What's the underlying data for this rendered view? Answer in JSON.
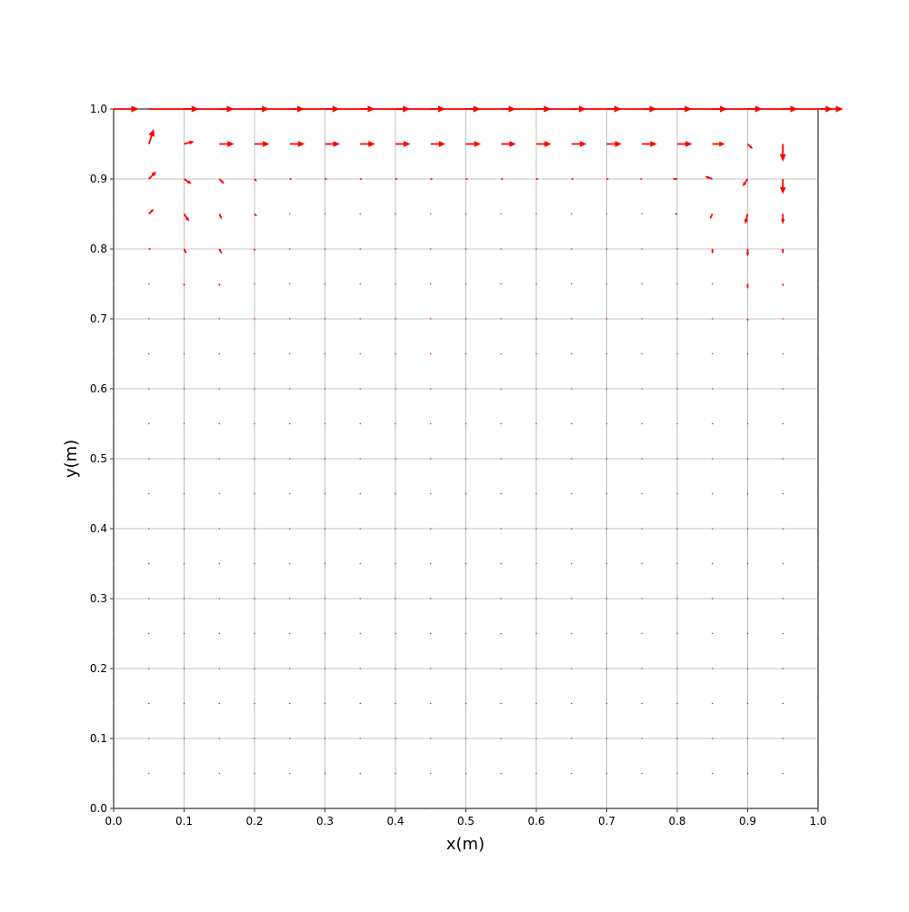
{
  "chart_data": {
    "type": "quiver",
    "xlabel": "x(m)",
    "ylabel": "y(m)",
    "color": "#ff0000",
    "grid": true,
    "xlim": [
      0,
      1
    ],
    "ylim": [
      0,
      1
    ],
    "xticks": [
      {
        "value": 0,
        "label": "0.0"
      },
      {
        "value": 0.1,
        "label": "0.1"
      },
      {
        "value": 0.2,
        "label": "0.2"
      },
      {
        "value": 0.3,
        "label": "0.3"
      },
      {
        "value": 0.4,
        "label": "0.4"
      },
      {
        "value": 0.5,
        "label": "0.5"
      },
      {
        "value": 0.6,
        "label": "0.6"
      },
      {
        "value": 0.7,
        "label": "0.7"
      },
      {
        "value": 0.8,
        "label": "0.8"
      },
      {
        "value": 0.9,
        "label": "0.9"
      },
      {
        "value": 1,
        "label": "1.0"
      }
    ],
    "yticks": [
      {
        "value": 0,
        "label": "0.0"
      },
      {
        "value": 0.1,
        "label": "0.1"
      },
      {
        "value": 0.2,
        "label": "0.2"
      },
      {
        "value": 0.3,
        "label": "0.3"
      },
      {
        "value": 0.4,
        "label": "0.4"
      },
      {
        "value": 0.5,
        "label": "0.5"
      },
      {
        "value": 0.6,
        "label": "0.6"
      },
      {
        "value": 0.7,
        "label": "0.7"
      },
      {
        "value": 0.8,
        "label": "0.8"
      },
      {
        "value": 0.9,
        "label": "0.9"
      },
      {
        "value": 1,
        "label": "1.0"
      }
    ],
    "x": [
      0,
      0.05,
      0.1,
      0.15,
      0.2,
      0.25,
      0.3,
      0.35,
      0.4,
      0.45,
      0.5,
      0.55,
      0.6,
      0.65,
      0.7,
      0.75,
      0.8,
      0.85,
      0.9,
      0.95,
      1
    ],
    "y": [
      0,
      0.05,
      0.1,
      0.15,
      0.2,
      0.25,
      0.3,
      0.35,
      0.4,
      0.45,
      0.5,
      0.55,
      0.6,
      0.65,
      0.7,
      0.75,
      0.8,
      0.85,
      0.9,
      0.95,
      1
    ],
    "u": [
      [
        0,
        0,
        0,
        0,
        0,
        0,
        0,
        0,
        0,
        0,
        0,
        0,
        0,
        0,
        0,
        0,
        0,
        0,
        0,
        0,
        0
      ],
      [
        0,
        0,
        0,
        0,
        0,
        0,
        0,
        0,
        0,
        0,
        0,
        0,
        0,
        0,
        0,
        0,
        0,
        0,
        0,
        0,
        0
      ],
      [
        0,
        0,
        0,
        0,
        0,
        0,
        0,
        0,
        0,
        0,
        0,
        0,
        0,
        0,
        0,
        0,
        0,
        0,
        0,
        0,
        0
      ],
      [
        0,
        0,
        0,
        0,
        0,
        0,
        0,
        0,
        0,
        0,
        0,
        0,
        0,
        0,
        0,
        0,
        0,
        0,
        0,
        0,
        0
      ],
      [
        0,
        0,
        0,
        0,
        0,
        0,
        0,
        0,
        0,
        0,
        0,
        0,
        0,
        0,
        0,
        0,
        0,
        0,
        0,
        0,
        0
      ],
      [
        0,
        0,
        0,
        0,
        0,
        0,
        0,
        0,
        0,
        0,
        0,
        0,
        0,
        0,
        0,
        0,
        0,
        0,
        0,
        0,
        0
      ],
      [
        0,
        0,
        0,
        0,
        0,
        0,
        0,
        0,
        0,
        0,
        0,
        0,
        0,
        0,
        0,
        0,
        0,
        0,
        0,
        0,
        0
      ],
      [
        0,
        0,
        0,
        0,
        0,
        0,
        0,
        0,
        0,
        0,
        0,
        0,
        0,
        0,
        0,
        0,
        0,
        0,
        0,
        0,
        0
      ],
      [
        0,
        0,
        0,
        0,
        0,
        0,
        0,
        0,
        0,
        0,
        0,
        0,
        0,
        0,
        0,
        0,
        0,
        0,
        0,
        0,
        0
      ],
      [
        0,
        0,
        0,
        0,
        0,
        0,
        0,
        0,
        0,
        0,
        0,
        0,
        0,
        0,
        0,
        0,
        0,
        0,
        0,
        0,
        0
      ],
      [
        0,
        0,
        0,
        0,
        0,
        0,
        0,
        0,
        0,
        0,
        0,
        0,
        0,
        0,
        0,
        0,
        0,
        0,
        0,
        0,
        0
      ],
      [
        0,
        0,
        0,
        0,
        0,
        0,
        0,
        0,
        0,
        0,
        0,
        0,
        0,
        0,
        0,
        0,
        0,
        0,
        0,
        0,
        0
      ],
      [
        0,
        0,
        0,
        0,
        0,
        0,
        0,
        0,
        0,
        0,
        0,
        0,
        0,
        0,
        0,
        0,
        0,
        0,
        0,
        0,
        0
      ],
      [
        0,
        0,
        0,
        0,
        0,
        0,
        0,
        0,
        0,
        0,
        0,
        0,
        0,
        0,
        0,
        0,
        0,
        0,
        0,
        0,
        0
      ],
      [
        0,
        0,
        0,
        0,
        0,
        0,
        0,
        0,
        0,
        0,
        0,
        0,
        0,
        0,
        0,
        0,
        0,
        0,
        0,
        0,
        0
      ],
      [
        0,
        0,
        0,
        0,
        0,
        0,
        0,
        0,
        0,
        0,
        0,
        0,
        0,
        0,
        0,
        0,
        0,
        0,
        0,
        0,
        0
      ],
      [
        0,
        0.05,
        0.05,
        0.05,
        0,
        0,
        0,
        0,
        0,
        0,
        0,
        0,
        0,
        0,
        0,
        0,
        0,
        0,
        0,
        0,
        0
      ],
      [
        0,
        0.1,
        0.1,
        0.05,
        0.05,
        0,
        0,
        0,
        0,
        0,
        0,
        0,
        0,
        0,
        0,
        0,
        -0.05,
        -0.05,
        -0.05,
        0,
        0
      ],
      [
        0,
        0.15,
        0.15,
        0.1,
        0.05,
        0.05,
        0.05,
        0.05,
        0.05,
        0.05,
        0.05,
        0.05,
        0.05,
        0.05,
        0.05,
        -0.05,
        -0.1,
        -0.15,
        -0.1,
        0,
        0
      ],
      [
        0,
        0.1,
        0.2,
        0.3,
        0.3,
        0.3,
        0.3,
        0.3,
        0.3,
        0.3,
        0.3,
        0.3,
        0.3,
        0.3,
        0.3,
        0.3,
        0.3,
        0.25,
        0.1,
        0,
        0
      ],
      [
        0.5,
        1,
        1,
        1,
        1,
        1,
        1,
        1,
        1,
        1,
        1,
        1,
        1,
        1,
        1,
        1,
        1,
        1,
        1,
        1,
        0.5
      ]
    ],
    "v": [
      [
        0,
        0,
        0,
        0,
        0,
        0,
        0,
        0,
        0,
        0,
        0,
        0,
        0,
        0,
        0,
        0,
        0,
        0,
        0,
        0,
        0
      ],
      [
        0,
        0,
        0,
        0,
        0,
        0,
        0,
        0,
        0,
        0,
        0,
        0,
        0,
        0,
        0,
        0,
        0,
        0,
        0,
        0,
        0
      ],
      [
        0,
        0,
        0,
        0,
        0,
        0,
        0,
        0,
        0,
        0,
        0,
        0,
        0,
        0,
        0,
        0,
        0,
        0,
        0,
        0,
        0
      ],
      [
        0,
        0,
        0,
        0,
        0,
        0,
        0,
        0,
        0,
        0,
        0,
        0,
        0,
        0,
        0,
        0,
        0,
        0,
        0,
        0,
        0
      ],
      [
        0,
        0,
        0,
        0,
        0,
        0,
        0,
        0,
        0,
        0,
        0,
        0,
        0,
        0,
        0,
        0,
        0,
        0,
        0,
        0,
        0
      ],
      [
        0,
        0,
        0,
        0,
        0,
        0,
        0,
        0,
        0,
        0,
        0,
        0,
        0,
        0,
        0,
        0,
        0,
        0,
        0,
        0,
        0
      ],
      [
        0,
        0,
        0,
        0,
        0,
        0,
        0,
        0,
        0,
        0,
        0,
        0,
        0,
        0,
        0,
        0,
        0,
        0,
        0,
        0,
        0
      ],
      [
        0,
        0,
        0,
        0,
        0,
        0,
        0,
        0,
        0,
        0,
        0,
        0,
        0,
        0,
        0,
        0,
        0,
        0,
        0,
        0,
        0
      ],
      [
        0,
        0,
        0,
        0,
        0,
        0,
        0,
        0,
        0,
        0,
        0,
        0,
        0,
        0,
        0,
        0,
        0,
        0,
        0,
        0,
        0
      ],
      [
        0,
        0,
        0,
        0,
        0,
        0,
        0,
        0,
        0,
        0,
        0,
        0,
        0,
        0,
        0,
        0,
        0,
        0,
        0,
        0,
        0
      ],
      [
        0,
        0,
        0,
        0,
        0,
        0,
        0,
        0,
        0,
        0,
        0,
        0,
        0,
        0,
        0,
        0,
        0,
        0,
        0,
        0,
        0
      ],
      [
        0,
        0,
        0,
        0,
        0,
        0,
        0,
        0,
        0,
        0,
        0,
        0,
        0,
        0,
        0,
        0,
        0,
        0,
        0,
        0,
        0
      ],
      [
        0,
        0,
        0,
        0,
        0,
        0,
        0,
        0,
        0,
        0,
        0,
        0,
        0,
        0,
        0,
        0,
        0,
        0,
        0,
        0,
        0
      ],
      [
        0,
        0,
        0,
        0,
        0,
        0,
        0,
        0,
        0,
        0,
        0,
        0,
        0,
        0,
        0,
        0,
        0,
        0,
        0,
        0,
        0
      ],
      [
        0,
        0,
        0,
        0,
        0,
        0,
        0,
        0,
        0,
        0,
        0,
        0,
        0,
        0,
        0,
        0,
        0,
        0,
        -0.05,
        0,
        0
      ],
      [
        0,
        0,
        -0.05,
        -0.05,
        0,
        0,
        0,
        0,
        0,
        0,
        0,
        0,
        0,
        0,
        0,
        0,
        0,
        0,
        -0.1,
        -0.05,
        0
      ],
      [
        0,
        0,
        -0.1,
        -0.1,
        -0.05,
        0,
        0,
        0,
        0,
        0,
        0,
        0,
        0,
        0,
        0,
        0,
        0,
        -0.1,
        -0.15,
        -0.1,
        0
      ],
      [
        0,
        0.1,
        -0.15,
        -0.1,
        -0.05,
        0,
        0,
        0,
        0,
        0,
        0,
        0,
        0,
        0,
        0,
        0,
        0,
        -0.1,
        -0.2,
        -0.2,
        0
      ],
      [
        0,
        0.15,
        -0.1,
        -0.1,
        -0.05,
        0,
        0,
        0,
        0,
        0,
        0,
        0,
        0,
        0,
        0,
        0,
        0,
        0.05,
        -0.15,
        -0.3,
        0
      ],
      [
        0,
        0.3,
        0.05,
        0,
        0,
        0,
        0,
        0,
        0,
        0,
        0,
        0,
        0,
        0,
        0,
        0,
        0,
        0,
        -0.1,
        -0.35,
        0
      ],
      [
        0,
        0,
        0,
        0,
        0,
        0,
        0,
        0,
        0,
        0,
        0,
        0,
        0,
        0,
        0,
        0,
        0,
        0,
        0,
        0,
        0
      ]
    ]
  }
}
